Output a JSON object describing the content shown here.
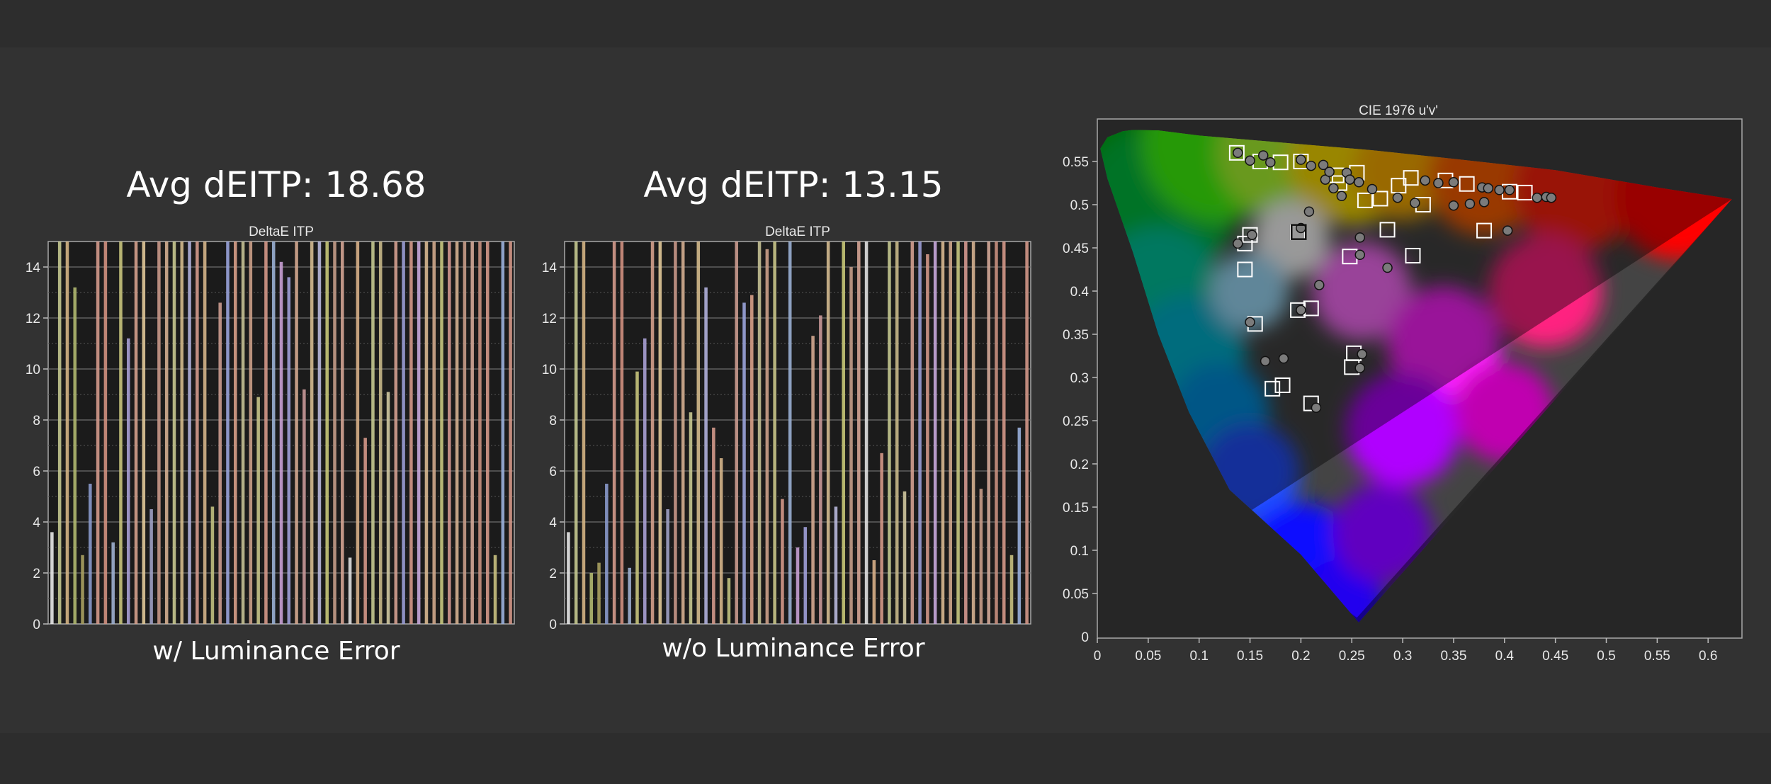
{
  "left": {
    "avg_label": "Avg dEITP: 18.68",
    "caption": "w/ Luminance Error"
  },
  "middle": {
    "avg_label": "Avg dEITP: 13.15",
    "caption": "w/o Luminance Error"
  },
  "chart_data": [
    {
      "type": "bar",
      "title": "DeltaE ITP",
      "ylim": [
        0,
        15
      ],
      "yticks": [
        0,
        2,
        4,
        6,
        8,
        10,
        12,
        14
      ],
      "grid": true,
      "values": [
        3.6,
        15,
        15,
        13.2,
        2.7,
        5.5,
        15,
        15,
        3.2,
        15,
        11.2,
        15,
        15,
        4.5,
        15,
        15,
        15,
        15,
        15,
        15,
        15,
        4.6,
        12.6,
        15,
        15,
        15,
        15,
        8.9,
        15,
        15,
        14.2,
        13.6,
        15,
        9.2,
        15,
        15,
        15,
        15,
        15,
        2.6,
        15,
        7.3,
        15,
        15,
        9.1,
        15,
        15,
        15,
        15,
        15,
        15,
        15,
        15,
        15,
        15,
        15,
        15,
        15,
        2.7,
        15,
        15
      ],
      "colors": [
        "#e8e8e8",
        "#c4c890",
        "#d4b484",
        "#b0b870",
        "#a8a060",
        "#8a9acc",
        "#d49a8c",
        "#d09080",
        "#9fb0d0",
        "#c8c47c",
        "#a8a0d4",
        "#d4a08c",
        "#e0c898",
        "#9ea0c4",
        "#c89888",
        "#d4ae90",
        "#c8c890",
        "#d4ba8c",
        "#b0b0dc",
        "#d49a8c",
        "#d4b48a",
        "#c0c080",
        "#cc9c90",
        "#9aa4dc",
        "#d8a088",
        "#c4c094",
        "#cca088",
        "#c8c488",
        "#d49888",
        "#9ab0d4",
        "#c8a0d4",
        "#a0a0d8",
        "#d4a890",
        "#c89898",
        "#d4ba90",
        "#b8b8dc",
        "#c8c878",
        "#c49c88",
        "#d4a494",
        "#e0e0e0",
        "#d8b088",
        "#d49888",
        "#c4c890",
        "#c8b888",
        "#d0c8a0",
        "#d4a090",
        "#9a9cd4",
        "#d49888",
        "#c8a8dc",
        "#d8b890",
        "#d0a88c",
        "#c8c880",
        "#d49890",
        "#d4b090",
        "#c89c88",
        "#d4a898",
        "#c89080",
        "#d49888",
        "#c8c080",
        "#9ab0dc",
        "#d49888"
      ]
    },
    {
      "type": "bar",
      "title": "DeltaE ITP",
      "ylim": [
        0,
        15
      ],
      "yticks": [
        0,
        2,
        4,
        6,
        8,
        10,
        12,
        14
      ],
      "grid": true,
      "values": [
        3.6,
        15,
        15,
        2.0,
        2.4,
        5.5,
        15,
        15,
        2.2,
        9.9,
        11.2,
        15,
        15,
        4.5,
        15,
        15,
        8.3,
        15,
        13.2,
        7.7,
        6.5,
        1.8,
        15,
        12.6,
        12.9,
        15,
        14.7,
        15,
        4.9,
        15,
        3.0,
        3.8,
        11.3,
        12.1,
        15,
        4.6,
        15,
        14.0,
        15,
        15,
        2.5,
        6.7,
        15,
        15,
        5.2,
        15,
        15,
        14.5,
        15,
        15,
        15,
        15,
        15,
        15,
        5.3,
        15,
        15,
        15,
        2.7,
        7.7,
        15
      ],
      "colors": [
        "#e8e8e8",
        "#c4c890",
        "#d4b484",
        "#b0b870",
        "#a8a060",
        "#8a9acc",
        "#d49a8c",
        "#d09080",
        "#9fb0d0",
        "#c8c47c",
        "#a8a0d4",
        "#d4a08c",
        "#e0c898",
        "#9ea0c4",
        "#c89888",
        "#d4ae90",
        "#c8c890",
        "#d4ba8c",
        "#b0b0dc",
        "#d49a8c",
        "#d4b48a",
        "#c0c080",
        "#cc9c90",
        "#9aa4dc",
        "#d8a088",
        "#c4c094",
        "#cca088",
        "#c8c488",
        "#d49888",
        "#9ab0d4",
        "#c8a0d4",
        "#a0a0d8",
        "#d4a890",
        "#c89898",
        "#d4ba90",
        "#b8b8dc",
        "#c8c878",
        "#c49c88",
        "#d4a494",
        "#e0e0e0",
        "#d8b088",
        "#d49888",
        "#c4c890",
        "#c8b888",
        "#d0c8a0",
        "#d4a090",
        "#9a9cd4",
        "#d49888",
        "#c8a8dc",
        "#d8b890",
        "#d0a88c",
        "#c8c880",
        "#d49890",
        "#d4b090",
        "#c89c88",
        "#d4a898",
        "#c89080",
        "#d49888",
        "#c8c080",
        "#9ab0dc",
        "#d49888"
      ]
    },
    {
      "type": "scatter",
      "title": "CIE 1976 u'v'",
      "xlim": [
        0,
        0.63
      ],
      "ylim": [
        0,
        0.6
      ],
      "xticks": [
        0,
        0.05,
        0.1,
        0.15,
        0.2,
        0.25,
        0.3,
        0.35,
        0.4,
        0.45,
        0.5,
        0.55,
        0.6
      ],
      "yticks": [
        0.05,
        0.1,
        0.15,
        0.2,
        0.25,
        0.3,
        0.35,
        0.4,
        0.45,
        0.5,
        0.55
      ],
      "xtick_labels": [
        "0",
        "0.05",
        "0.1",
        "0.15",
        "0.2",
        "0.25",
        "0.3",
        "0.35",
        "0.4",
        "0.45",
        "0.5",
        "0.55",
        "0.6"
      ],
      "ytick_labels": [
        "0.05",
        "0.1",
        "0.15",
        "0.2",
        "0.25",
        "0.3",
        "0.35",
        "0.4",
        "0.45",
        "0.5",
        "0.55"
      ],
      "extra_ytick_labels": [
        {
          "value": 0,
          "label": "0"
        }
      ],
      "gamut_triangle": [
        [
          0.6234,
          0.5065
        ],
        [
          0.13,
          0.13
        ],
        [
          0.255,
          0.022
        ]
      ],
      "white_point": [
        0.1978,
        0.4683
      ],
      "series": [
        {
          "marker": "square",
          "points": [
            [
              0.137,
              0.56
            ],
            [
              0.16,
              0.55
            ],
            [
              0.18,
              0.549
            ],
            [
              0.2,
              0.55
            ],
            [
              0.235,
              0.534
            ],
            [
              0.255,
              0.537
            ],
            [
              0.238,
              0.525
            ],
            [
              0.278,
              0.507
            ],
            [
              0.263,
              0.505
            ],
            [
              0.296,
              0.522
            ],
            [
              0.308,
              0.531
            ],
            [
              0.342,
              0.528
            ],
            [
              0.363,
              0.524
            ],
            [
              0.405,
              0.515
            ],
            [
              0.42,
              0.514
            ],
            [
              0.32,
              0.5
            ],
            [
              0.197,
              0.468
            ],
            [
              0.15,
              0.465
            ],
            [
              0.145,
              0.455
            ],
            [
              0.145,
              0.425
            ],
            [
              0.285,
              0.471
            ],
            [
              0.38,
              0.47
            ],
            [
              0.248,
              0.44
            ],
            [
              0.31,
              0.441
            ],
            [
              0.21,
              0.38
            ],
            [
              0.197,
              0.378
            ],
            [
              0.155,
              0.362
            ],
            [
              0.252,
              0.328
            ],
            [
              0.25,
              0.312
            ],
            [
              0.182,
              0.291
            ],
            [
              0.172,
              0.287
            ],
            [
              0.21,
              0.27
            ]
          ]
        },
        {
          "marker": "circle",
          "points": [
            [
              0.138,
              0.56
            ],
            [
              0.15,
              0.551
            ],
            [
              0.163,
              0.557
            ],
            [
              0.17,
              0.549
            ],
            [
              0.2,
              0.552
            ],
            [
              0.21,
              0.545
            ],
            [
              0.222,
              0.546
            ],
            [
              0.224,
              0.529
            ],
            [
              0.228,
              0.538
            ],
            [
              0.232,
              0.519
            ],
            [
              0.24,
              0.51
            ],
            [
              0.245,
              0.537
            ],
            [
              0.248,
              0.529
            ],
            [
              0.257,
              0.526
            ],
            [
              0.27,
              0.518
            ],
            [
              0.295,
              0.508
            ],
            [
              0.312,
              0.502
            ],
            [
              0.322,
              0.528
            ],
            [
              0.335,
              0.525
            ],
            [
              0.35,
              0.526
            ],
            [
              0.35,
              0.499
            ],
            [
              0.366,
              0.501
            ],
            [
              0.378,
              0.52
            ],
            [
              0.384,
              0.519
            ],
            [
              0.395,
              0.517
            ],
            [
              0.405,
              0.517
            ],
            [
              0.432,
              0.508
            ],
            [
              0.441,
              0.509
            ],
            [
              0.446,
              0.508
            ],
            [
              0.38,
              0.503
            ],
            [
              0.403,
              0.47
            ],
            [
              0.2,
              0.473
            ],
            [
              0.208,
              0.492
            ],
            [
              0.258,
              0.462
            ],
            [
              0.258,
              0.442
            ],
            [
              0.285,
              0.427
            ],
            [
              0.218,
              0.407
            ],
            [
              0.2,
              0.378
            ],
            [
              0.15,
              0.364
            ],
            [
              0.138,
              0.455
            ],
            [
              0.152,
              0.465
            ],
            [
              0.183,
              0.322
            ],
            [
              0.165,
              0.319
            ],
            [
              0.26,
              0.327
            ],
            [
              0.258,
              0.311
            ],
            [
              0.215,
              0.265
            ]
          ]
        }
      ]
    }
  ]
}
